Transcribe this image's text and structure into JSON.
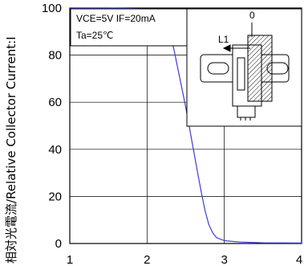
{
  "chart_data": {
    "type": "line",
    "ylabel": "相対光電流/Relative Collector Current:I",
    "xlim": [
      1,
      4
    ],
    "ylim": [
      0,
      100
    ],
    "x_ticks": [
      "1",
      "2",
      "3",
      "4"
    ],
    "y_ticks": [
      "0",
      "20",
      "40",
      "60",
      "80",
      "100"
    ],
    "grid": true,
    "conditions": {
      "line1": "VCE=5V  IF=20mA",
      "line2": "Ta=25℃"
    },
    "inset": {
      "label_l1": "L1",
      "label_zero": "0"
    },
    "series": [
      {
        "color": "#3b3bd6",
        "x": [
          1.0,
          1.5,
          1.8,
          2.0,
          2.1,
          2.2,
          2.25,
          2.3,
          2.35,
          2.4,
          2.45,
          2.5,
          2.55,
          2.6,
          2.65,
          2.7,
          2.75,
          2.8,
          2.85,
          2.9,
          3.0,
          3.2,
          3.5,
          4.0
        ],
        "y": [
          100,
          100,
          99.8,
          99.5,
          99,
          97,
          94,
          89,
          82,
          74,
          66,
          58,
          49,
          40,
          31,
          22,
          14,
          8,
          4.5,
          2.5,
          1.2,
          0.6,
          0.3,
          0.2
        ]
      }
    ]
  }
}
